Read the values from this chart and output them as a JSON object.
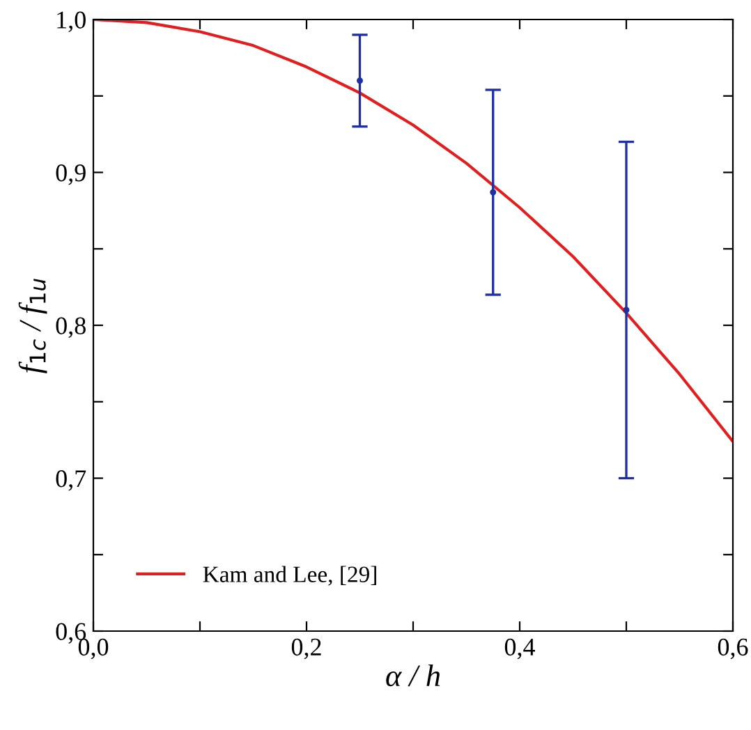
{
  "chart_data": {
    "type": "line",
    "xlabel": "α / h",
    "ylabel": "f$_{1c}$ / f$_{1u}$",
    "xlim": [
      0,
      0.6
    ],
    "ylim": [
      0.6,
      1.0
    ],
    "xticks": [
      {
        "value": 0,
        "label": "0,0"
      },
      {
        "value": 0.1,
        "label": null
      },
      {
        "value": 0.2,
        "label": "0,2"
      },
      {
        "value": 0.3,
        "label": null
      },
      {
        "value": 0.4,
        "label": "0,4"
      },
      {
        "value": 0.5,
        "label": null
      },
      {
        "value": 0.6,
        "label": "0,6"
      }
    ],
    "yticks": [
      {
        "value": 0.6,
        "label": "0,6"
      },
      {
        "value": 0.65,
        "label": null
      },
      {
        "value": 0.7,
        "label": "0,7"
      },
      {
        "value": 0.75,
        "label": null
      },
      {
        "value": 0.8,
        "label": "0,8"
      },
      {
        "value": 0.85,
        "label": null
      },
      {
        "value": 0.9,
        "label": "0,9"
      },
      {
        "value": 0.95,
        "label": null
      },
      {
        "value": 1.0,
        "label": "1,0"
      }
    ],
    "grid": false,
    "legend": "bottom left",
    "series": [
      {
        "name": "Kam and Lee, [29]",
        "color": "#e02020",
        "x": [
          0,
          0.05,
          0.1,
          0.15,
          0.2,
          0.25,
          0.3,
          0.35,
          0.4,
          0.45,
          0.5,
          0.55,
          0.6
        ],
        "values": [
          1.0,
          0.998,
          0.992,
          0.983,
          0.969,
          0.952,
          0.931,
          0.906,
          0.877,
          0.845,
          0.808,
          0.768,
          0.724
        ]
      },
      {
        "type": "scatter",
        "color": "#2030a0",
        "marker": "circle",
        "x": [
          0.25,
          0.375,
          0.5
        ],
        "values": [
          0.96,
          0.887,
          0.81
        ],
        "errors": [
          [
            0.93,
            0.99
          ],
          [
            0.82,
            0.954
          ],
          [
            0.7,
            0.92
          ]
        ]
      }
    ]
  }
}
